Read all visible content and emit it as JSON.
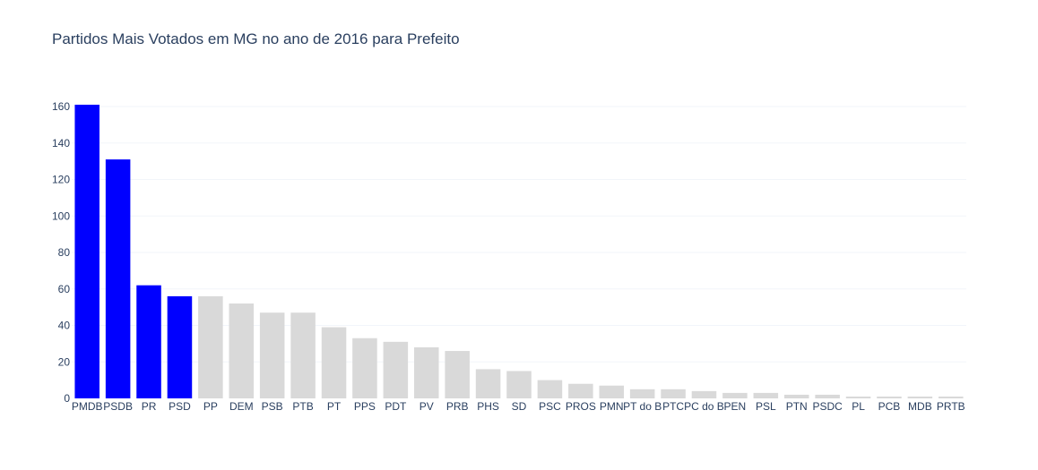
{
  "chart_data": {
    "type": "bar",
    "title": "Partidos Mais Votados em MG no ano de 2016 para Prefeito",
    "xlabel": "",
    "ylabel": "",
    "ylim": [
      0,
      160
    ],
    "yticks": [
      0,
      20,
      40,
      60,
      80,
      100,
      120,
      140,
      160
    ],
    "grid": true,
    "colors": {
      "highlight": "#0000ff",
      "default": "#d9d9d9",
      "grid": "#f2f5fa",
      "text": "#2a3f5f"
    },
    "categories": [
      "PMDB",
      "PSDB",
      "PR",
      "PSD",
      "PP",
      "DEM",
      "PSB",
      "PTB",
      "PT",
      "PPS",
      "PDT",
      "PV",
      "PRB",
      "PHS",
      "SD",
      "PSC",
      "PROS",
      "PMN",
      "PT do B",
      "PTC",
      "PC do B",
      "PEN",
      "PSL",
      "PTN",
      "PSDC",
      "PL",
      "PCB",
      "MDB",
      "PRTB"
    ],
    "values": [
      161,
      131,
      62,
      56,
      56,
      52,
      47,
      47,
      39,
      33,
      31,
      28,
      26,
      16,
      15,
      10,
      8,
      7,
      5,
      5,
      4,
      3,
      3,
      2,
      2,
      1,
      1,
      1,
      1
    ],
    "highlighted_count": 4
  }
}
